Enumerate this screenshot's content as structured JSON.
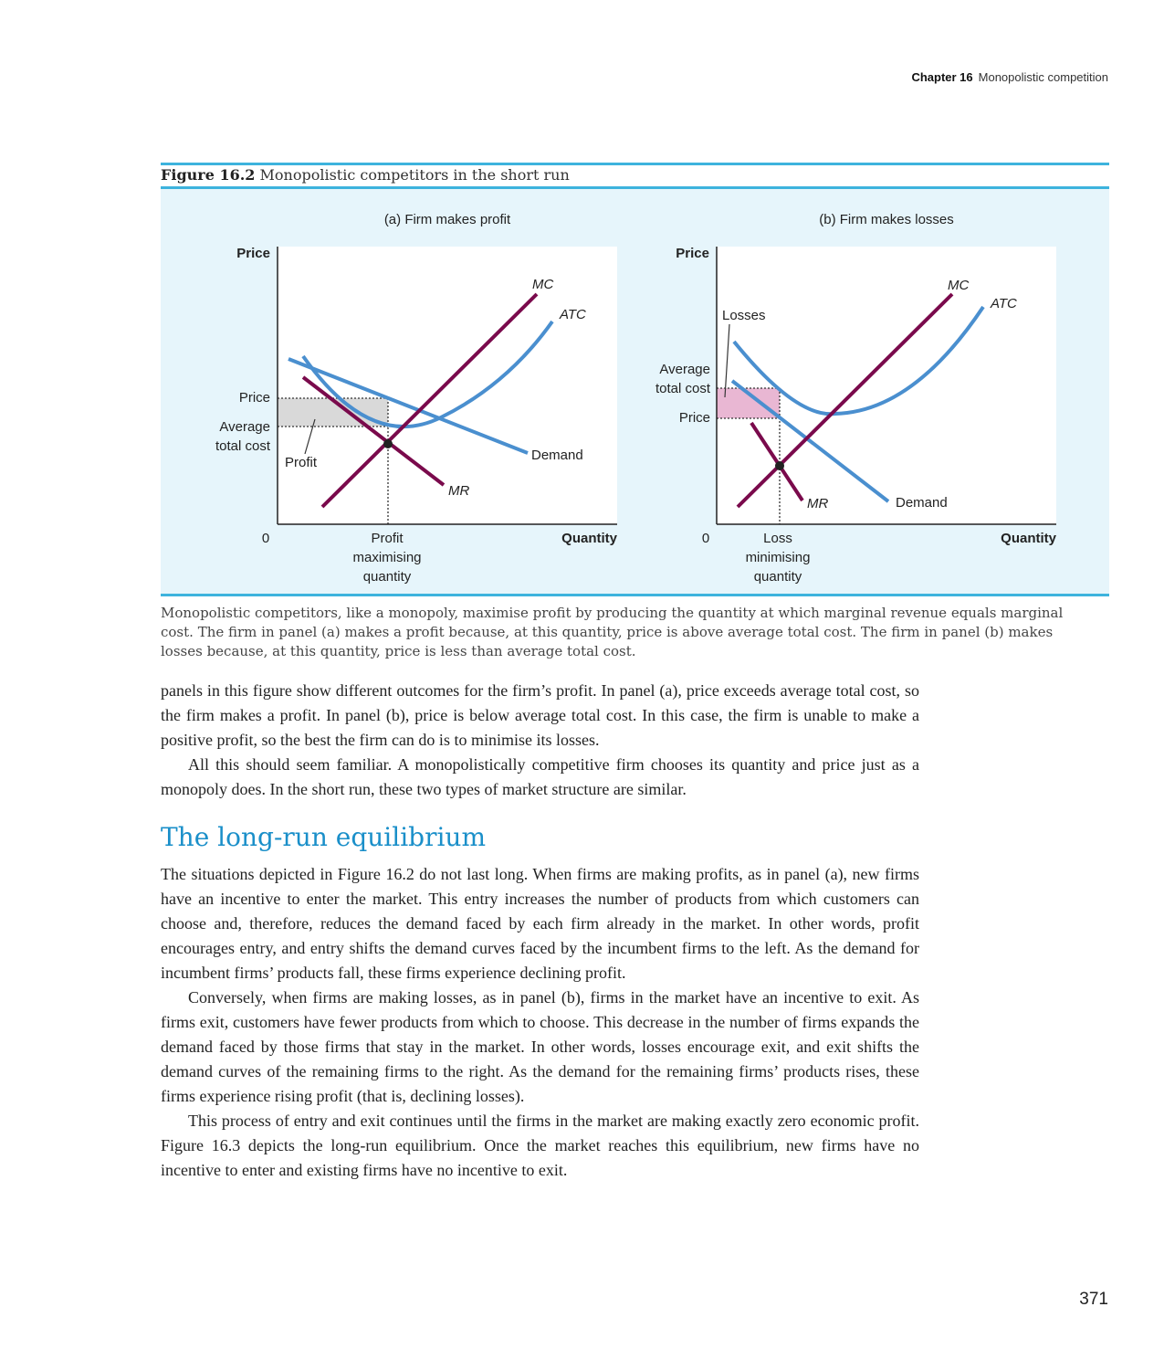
{
  "header": {
    "chapter": "Chapter 16",
    "chapter_title": "Monopolistic competition"
  },
  "figure": {
    "label": "Figure 16.2",
    "title": "Monopolistic competitors in the short run",
    "panel_a": {
      "title": "(a) Firm makes profit",
      "y_axis_label": "Price",
      "x_axis_label": "Quantity",
      "origin": "0",
      "price_label": "Price",
      "atc_label_line1": "Average",
      "atc_label_line2": "total cost",
      "area_label": "Profit",
      "mc_label": "MC",
      "atc_curve_label": "ATC",
      "demand_label": "Demand",
      "mr_label": "MR",
      "quantity_label_line1": "Profit",
      "quantity_label_line2": "maximising",
      "quantity_label_line3": "quantity"
    },
    "panel_b": {
      "title": "(b) Firm makes losses",
      "y_axis_label": "Price",
      "x_axis_label": "Quantity",
      "origin": "0",
      "price_label": "Price",
      "atc_label_line1": "Average",
      "atc_label_line2": "total cost",
      "area_label": "Losses",
      "mc_label": "MC",
      "atc_curve_label": "ATC",
      "demand_label": "Demand",
      "mr_label": "MR",
      "quantity_label_line1": "Loss",
      "quantity_label_line2": "minimising",
      "quantity_label_line3": "quantity"
    },
    "colors": {
      "mc_mr": "#7a0a4c",
      "atc_demand": "#4a8fcf",
      "profit_fill": "#d9d9d9",
      "loss_fill": "#e9b7d3",
      "frame": "#3db3dd",
      "background": "#e6f5fb"
    },
    "caption": "Monopolistic competitors, like a monopoly, maximise profit by producing the quantity at which marginal revenue equals marginal cost. The firm in panel (a) makes a profit because, at this quantity, price is above average total cost. The firm in panel (b) makes losses because, at this quantity, price is less than average total cost."
  },
  "body": {
    "para1": "panels in this figure show different outcomes for the firm’s profit. In panel (a), price exceeds average total cost, so the firm makes a profit. In panel (b), price is below average total cost. In this case, the firm is unable to make a positive profit, so the best the firm can do is to minimise its losses.",
    "para2": "All this should seem familiar. A monopolistically competitive firm chooses its quantity and price just as a monopoly does. In the short run, these two types of market structure are similar.",
    "section_title": "The long-run equilibrium",
    "para3": "The situations depicted in Figure 16.2 do not last long. When firms are making profits, as in panel (a), new firms have an incentive to enter the market. This entry increases the number of products from which customers can choose and, therefore, reduces the demand faced by each firm already in the market. In other words, profit encourages entry, and entry shifts the demand curves faced by the incumbent firms to the left. As the demand for incumbent firms’ products fall, these firms experience declining profit.",
    "para4": "Conversely, when firms are making losses, as in panel (b), firms in the market have an incentive to exit. As firms exit, customers have fewer products from which to choose. This decrease in the number of firms expands the demand faced by those firms that stay in the market. In other words, losses encourage exit, and exit shifts the demand curves of the remaining firms to the right. As the demand for the remaining firms’ products rises, these firms experience rising profit (that is, declining losses).",
    "para5": "This process of entry and exit continues until the firms in the market are making exactly zero economic profit. Figure 16.3 depicts the long-run equilibrium. Once the market reaches this equilibrium, new firms have no incentive to enter and existing firms have no incentive to exit."
  },
  "page_number": "371"
}
